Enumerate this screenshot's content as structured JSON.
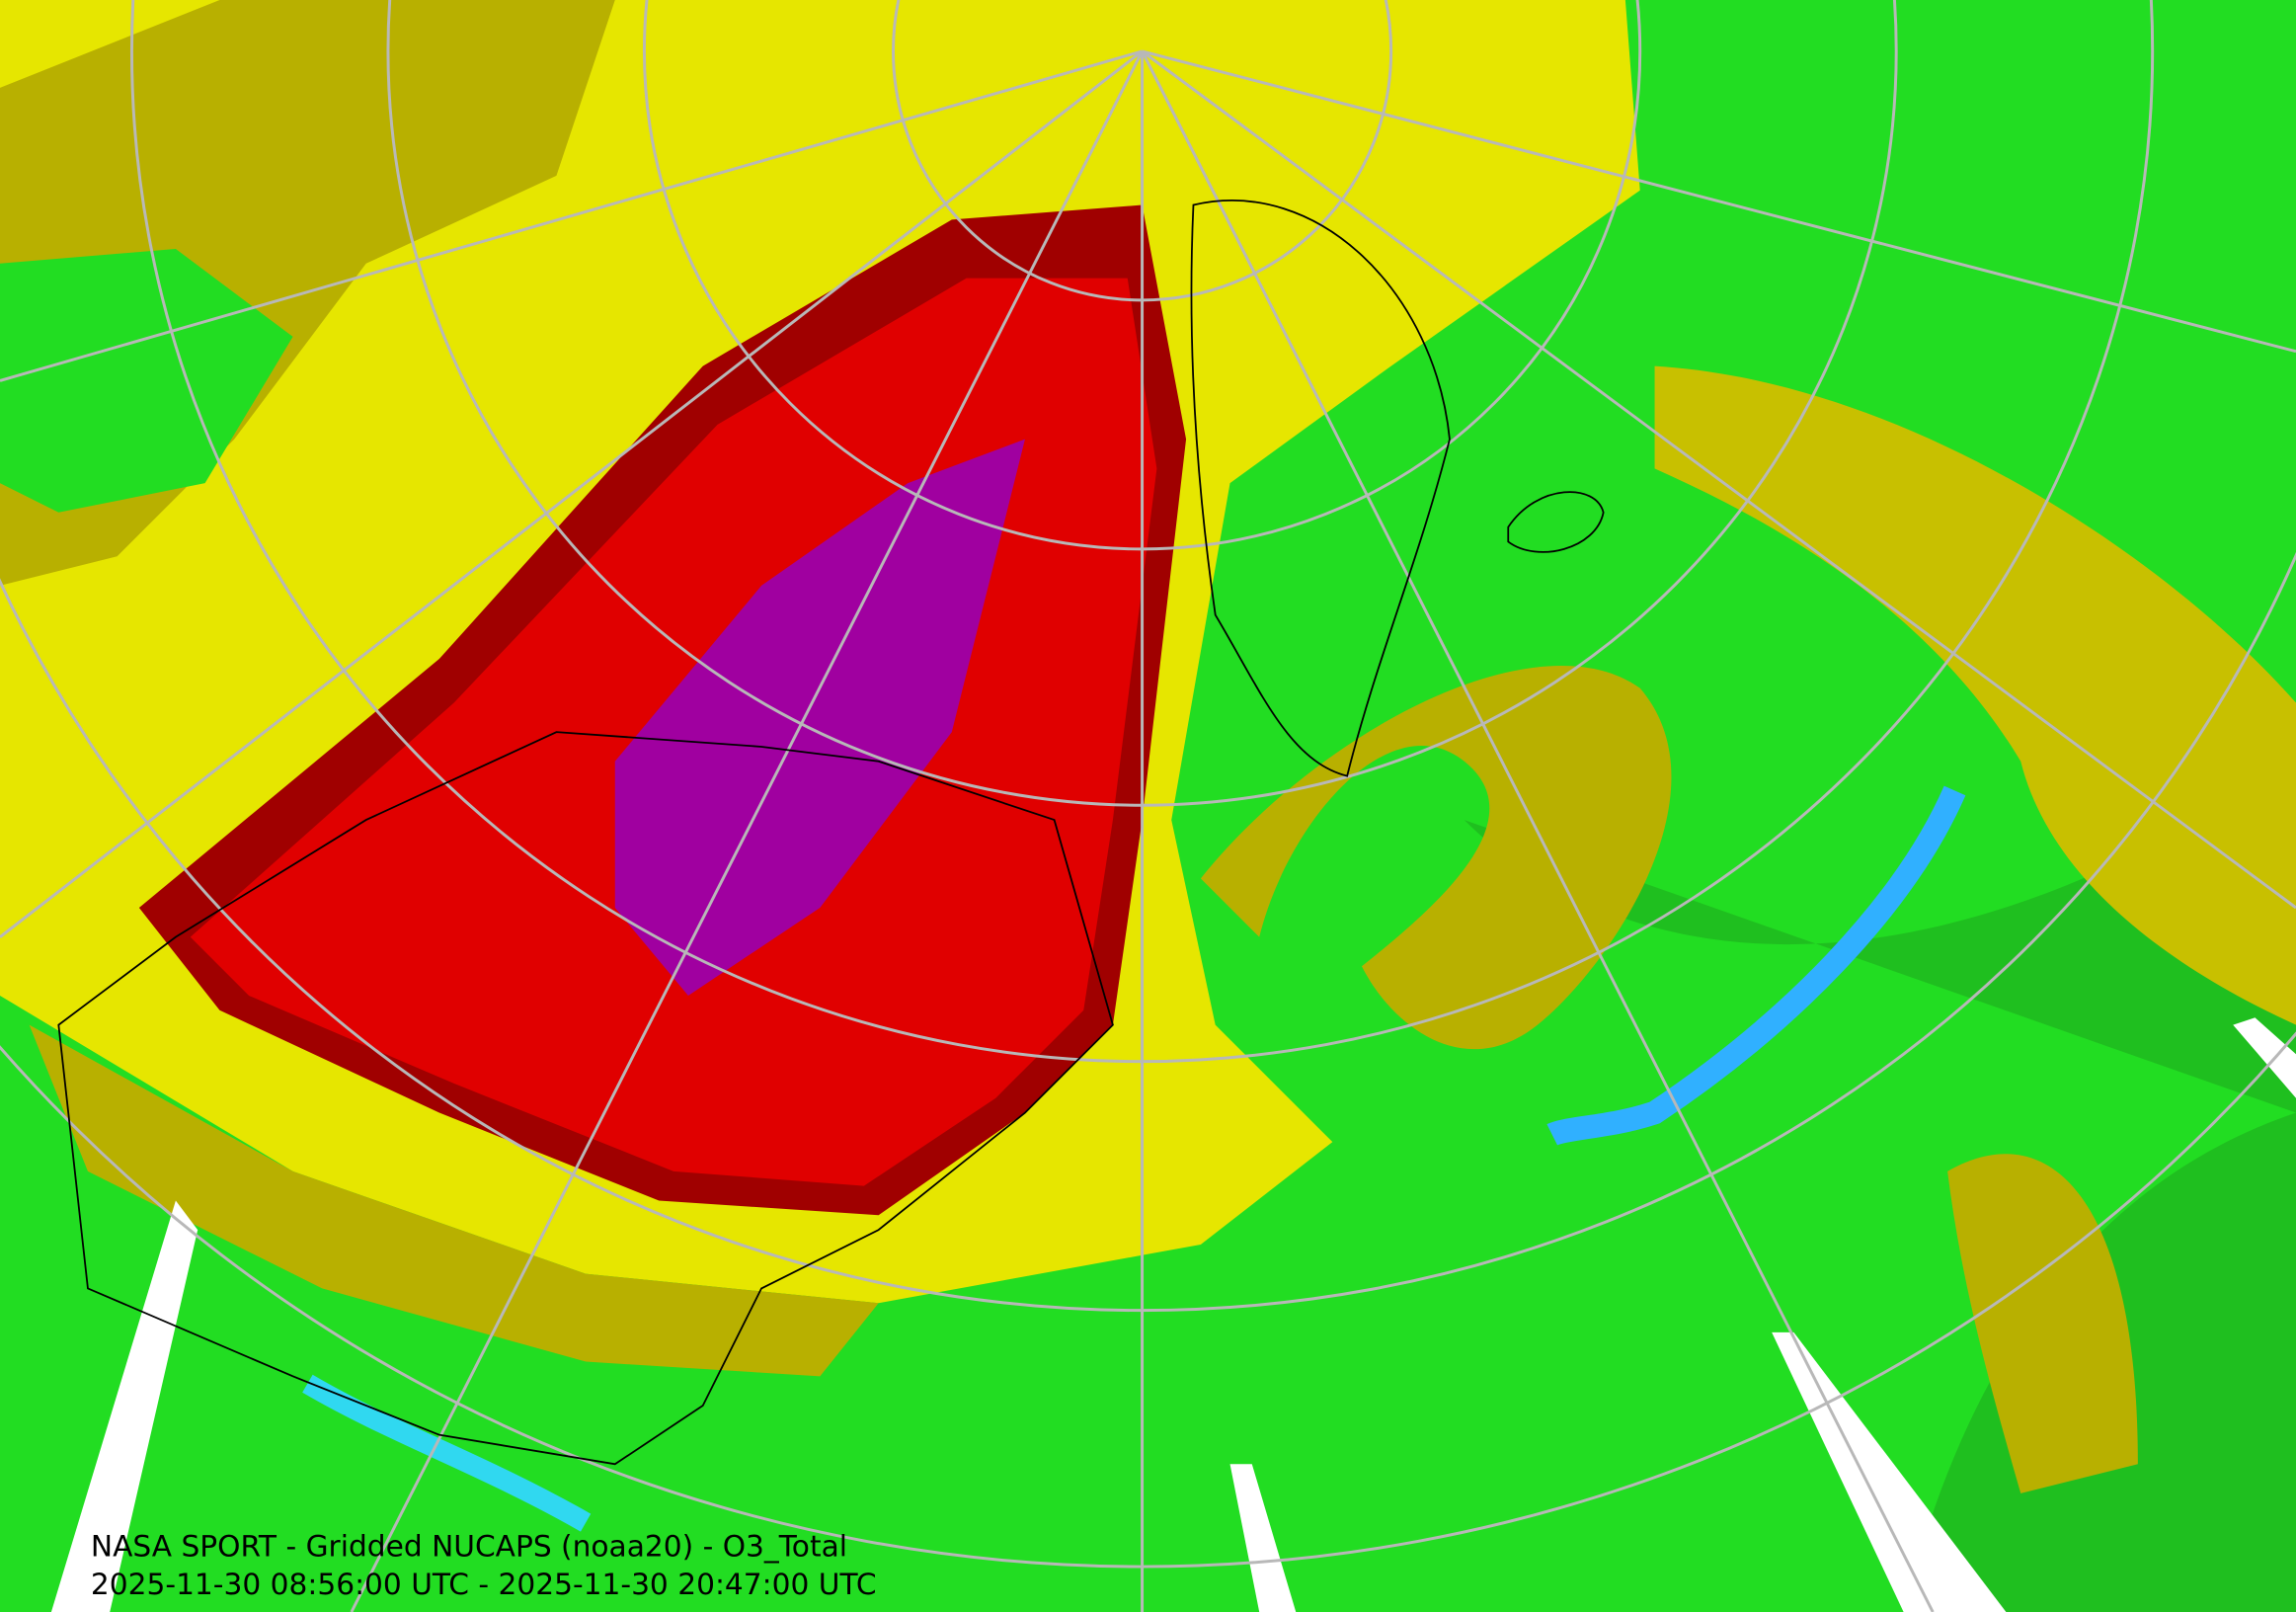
{
  "caption": {
    "title": "NASA SPORT - Gridded NUCAPS (noaa20) - O3_Total",
    "time_range": "2025-11-30 08:56:00 UTC - 2025-11-30 20:47:00 UTC"
  }
}
